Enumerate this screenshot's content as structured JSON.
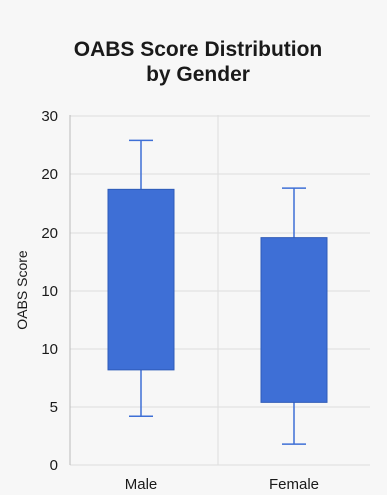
{
  "chart_data": {
    "type": "box",
    "title_lines": [
      "OABS Score Distribution",
      "by Gender"
    ],
    "ylabel": "OABS Score",
    "xlabel": "",
    "tick_labels": [
      "0",
      "5",
      "10",
      "10",
      "20",
      "20",
      "30"
    ],
    "categories": [
      "Male",
      "Female"
    ],
    "boxes": [
      {
        "category": "Male",
        "min": 4.2,
        "q1": 8.2,
        "q3": 23.7,
        "max": 27.9
      },
      {
        "category": "Female",
        "min": 1.8,
        "q1": 5.4,
        "q3": 19.6,
        "max": 23.8
      }
    ],
    "box_color": "#3e6fd6",
    "grid": true
  }
}
